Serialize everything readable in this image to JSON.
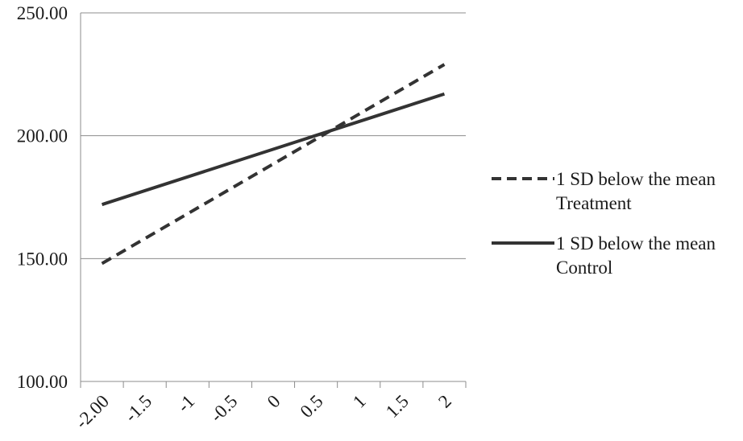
{
  "chart_data": {
    "type": "line",
    "title": "",
    "xlabel": "",
    "ylabel": "",
    "x_ticks": [
      "-2.00",
      "-1.5",
      "-1",
      "-0.5",
      "0",
      "0.5",
      "1",
      "1.5",
      "2"
    ],
    "y_ticks": [
      "100.00",
      "150.00",
      "200.00",
      "250.00"
    ],
    "xlim": [
      -2.25,
      2.25
    ],
    "ylim": [
      100,
      250
    ],
    "grid": "horizontal",
    "legend_position": "right",
    "series": [
      {
        "name": "1 SD below the mean\nTreatment",
        "x": [
          -2,
          2
        ],
        "y": [
          148,
          229
        ],
        "style": "dashed",
        "color": "#333333"
      },
      {
        "name": "1 SD below the mean\nControl",
        "x": [
          -2,
          2
        ],
        "y": [
          172,
          217
        ],
        "style": "solid",
        "color": "#333333"
      }
    ]
  }
}
